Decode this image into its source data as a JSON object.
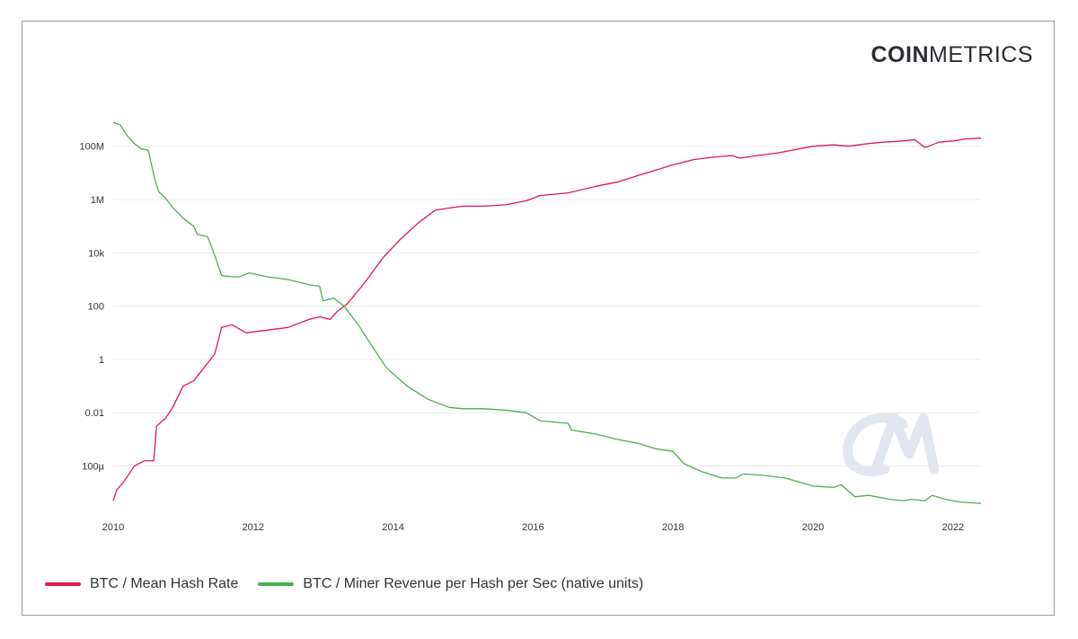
{
  "brand": {
    "logo_bold": "COIN",
    "logo_light": "METRICS",
    "watermark": "CM"
  },
  "colors": {
    "hash_rate": "#e0194c",
    "miner_revenue": "#4caf50",
    "grid": "#ebebeb",
    "frame": "#9a9a9a",
    "watermark": "#e2e6ee"
  },
  "chart_data": {
    "type": "line",
    "title": "",
    "xlabel": "",
    "ylabel": "",
    "y_scale": "log",
    "xlim": [
      2010,
      2022.4
    ],
    "ylim_log10": [
      -5.6,
      8.9
    ],
    "x_ticks": [
      {
        "value": 2010,
        "label": "2010"
      },
      {
        "value": 2012,
        "label": "2012"
      },
      {
        "value": 2014,
        "label": "2014"
      },
      {
        "value": 2016,
        "label": "2016"
      },
      {
        "value": 2018,
        "label": "2018"
      },
      {
        "value": 2020,
        "label": "2020"
      },
      {
        "value": 2022,
        "label": "2022"
      }
    ],
    "y_ticks": [
      {
        "log10": 8,
        "label": "100M"
      },
      {
        "log10": 6,
        "label": "1M"
      },
      {
        "log10": 4,
        "label": "10k"
      },
      {
        "log10": 2,
        "label": "100"
      },
      {
        "log10": 0,
        "label": "1"
      },
      {
        "log10": -2,
        "label": "0.01"
      },
      {
        "log10": -4,
        "label": "100µ"
      }
    ],
    "grid": true,
    "legend_position": "bottom-left",
    "series": [
      {
        "name": "BTC / Mean Hash Rate",
        "color": "#e0194c",
        "x": [
          2010.0,
          2010.05,
          2010.15,
          2010.3,
          2010.45,
          2010.58,
          2010.62,
          2010.75,
          2010.85,
          2011.0,
          2011.15,
          2011.3,
          2011.45,
          2011.55,
          2011.7,
          2011.9,
          2012.2,
          2012.5,
          2012.8,
          2012.95,
          2013.1,
          2013.2,
          2013.35,
          2013.6,
          2013.85,
          2014.1,
          2014.35,
          2014.6,
          2014.85,
          2015.0,
          2015.3,
          2015.6,
          2015.9,
          2016.1,
          2016.5,
          2016.9,
          2017.2,
          2017.5,
          2017.75,
          2018.0,
          2018.3,
          2018.6,
          2018.85,
          2018.95,
          2019.2,
          2019.5,
          2019.8,
          2020.0,
          2020.3,
          2020.5,
          2020.8,
          2021.0,
          2021.3,
          2021.45,
          2021.6,
          2021.8,
          2022.0,
          2022.2,
          2022.4
        ],
        "log10": [
          -5.3,
          -4.9,
          -4.6,
          -4.0,
          -3.8,
          -3.8,
          -2.5,
          -2.2,
          -1.8,
          -1.0,
          -0.8,
          -0.3,
          0.2,
          1.2,
          1.3,
          1.0,
          1.1,
          1.2,
          1.5,
          1.6,
          1.5,
          1.8,
          2.1,
          2.9,
          3.8,
          4.5,
          5.1,
          5.6,
          5.7,
          5.75,
          5.75,
          5.8,
          5.95,
          6.15,
          6.25,
          6.5,
          6.65,
          6.9,
          7.1,
          7.3,
          7.5,
          7.6,
          7.65,
          7.55,
          7.65,
          7.75,
          7.9,
          8.0,
          8.05,
          8.0,
          8.1,
          8.15,
          8.2,
          8.25,
          7.95,
          8.15,
          8.2,
          8.28,
          8.3
        ]
      },
      {
        "name": "BTC / Miner Revenue per Hash per Sec (native units)",
        "color": "#4caf50",
        "x": [
          2010.0,
          2010.1,
          2010.2,
          2010.3,
          2010.4,
          2010.5,
          2010.6,
          2010.65,
          2010.75,
          2010.85,
          2011.0,
          2011.15,
          2011.2,
          2011.35,
          2011.45,
          2011.55,
          2011.7,
          2011.8,
          2011.95,
          2012.2,
          2012.5,
          2012.8,
          2012.95,
          2013.0,
          2013.15,
          2013.3,
          2013.5,
          2013.7,
          2013.9,
          2014.2,
          2014.5,
          2014.8,
          2015.0,
          2015.3,
          2015.6,
          2015.9,
          2016.1,
          2016.5,
          2016.55,
          2016.9,
          2017.2,
          2017.5,
          2017.75,
          2018.0,
          2018.15,
          2018.4,
          2018.7,
          2018.9,
          2019.0,
          2019.3,
          2019.6,
          2019.8,
          2020.0,
          2020.3,
          2020.4,
          2020.6,
          2020.8,
          2021.1,
          2021.3,
          2021.4,
          2021.6,
          2021.7,
          2021.9,
          2022.1,
          2022.4
        ],
        "log10": [
          8.9,
          8.8,
          8.4,
          8.1,
          7.9,
          7.85,
          6.7,
          6.3,
          6.05,
          5.7,
          5.3,
          5.0,
          4.7,
          4.6,
          3.9,
          3.15,
          3.1,
          3.1,
          3.25,
          3.1,
          3.0,
          2.8,
          2.75,
          2.2,
          2.3,
          2.0,
          1.3,
          0.5,
          -0.3,
          -1.0,
          -1.5,
          -1.8,
          -1.85,
          -1.85,
          -1.9,
          -2.0,
          -2.3,
          -2.4,
          -2.65,
          -2.8,
          -3.0,
          -3.15,
          -3.35,
          -3.45,
          -3.9,
          -4.2,
          -4.45,
          -4.45,
          -4.3,
          -4.35,
          -4.45,
          -4.6,
          -4.75,
          -4.8,
          -4.7,
          -5.15,
          -5.1,
          -5.25,
          -5.3,
          -5.25,
          -5.3,
          -5.1,
          -5.25,
          -5.35,
          -5.4
        ]
      }
    ]
  }
}
